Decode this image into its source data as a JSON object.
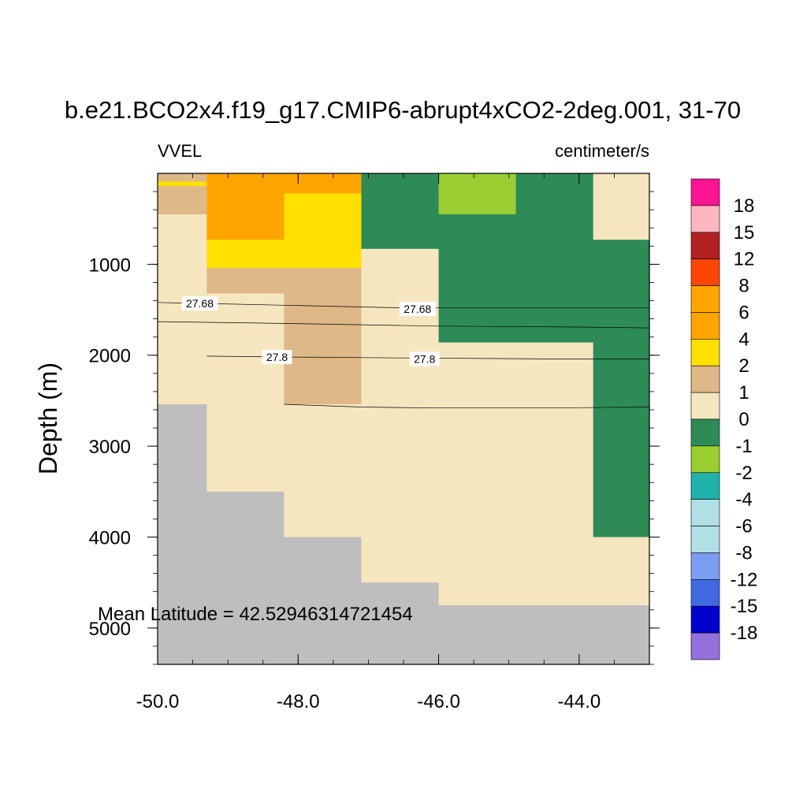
{
  "chart_data": {
    "type": "heatmap",
    "title": "b.e21.BCO2x4.f19_g17.CMIP6-abrupt4xCO2-2deg.001, 31-70",
    "left_label": "VVEL",
    "right_label": "centimeter/s",
    "ylabel": "Depth (m)",
    "xlabel": "",
    "annotation": "Mean Latitude = 42.52946314721454",
    "xlim": [
      -50.0,
      -43.0
    ],
    "ylim": [
      0,
      5400
    ],
    "y_inverted": true,
    "x_ticks": [
      -50.0,
      -48.0,
      -46.0,
      -44.0
    ],
    "x_tick_labels": [
      "-50.0",
      "-48.0",
      "-46.0",
      "-44.0"
    ],
    "y_ticks": [
      1000,
      2000,
      3000,
      4000,
      5000
    ],
    "y_tick_labels": [
      "1000",
      "2000",
      "3000",
      "4000",
      "5000"
    ],
    "colorbar": {
      "colors": [
        "#ff1493",
        "#ffb6c1",
        "#b22222",
        "#ff4500",
        "#ffa500",
        "#ffa500",
        "#ffe000",
        "#deb887",
        "#f5e6bf",
        "#2e8b57",
        "#9acd32",
        "#20b2aa",
        "#b0e0e6",
        "#b0e0e6",
        "#7b9ef2",
        "#4169e1",
        "#0000cd",
        "#9370db"
      ],
      "labels": [
        "18",
        "15",
        "12",
        "8",
        "6",
        "4",
        "2",
        "1",
        "0",
        "-1",
        "-2",
        "-4",
        "-6",
        "-8",
        "-12",
        "-15",
        "-18"
      ]
    },
    "missing_color": "#bebebe",
    "cells": [
      {
        "x0": -50.0,
        "x1": -49.3,
        "y0": 0,
        "y1": 90,
        "color": "#deb887"
      },
      {
        "x0": -50.0,
        "x1": -49.3,
        "y0": 90,
        "y1": 140,
        "color": "#ffe000"
      },
      {
        "x0": -50.0,
        "x1": -49.3,
        "y0": 140,
        "y1": 450,
        "color": "#deb887"
      },
      {
        "x0": -50.0,
        "x1": -49.3,
        "y0": 450,
        "y1": 2540,
        "color": "#f5e6bf"
      },
      {
        "x0": -50.0,
        "x1": -49.3,
        "y0": 2540,
        "y1": 5400,
        "color": "#bebebe"
      },
      {
        "x0": -49.3,
        "x1": -48.2,
        "y0": 0,
        "y1": 730,
        "color": "#ffa500"
      },
      {
        "x0": -49.3,
        "x1": -48.2,
        "y0": 730,
        "y1": 1040,
        "color": "#ffe000"
      },
      {
        "x0": -49.3,
        "x1": -48.2,
        "y0": 1040,
        "y1": 1320,
        "color": "#deb887"
      },
      {
        "x0": -49.3,
        "x1": -48.2,
        "y0": 1320,
        "y1": 3500,
        "color": "#f5e6bf"
      },
      {
        "x0": -49.3,
        "x1": -48.2,
        "y0": 3500,
        "y1": 5400,
        "color": "#bebebe"
      },
      {
        "x0": -48.2,
        "x1": -47.1,
        "y0": 0,
        "y1": 220,
        "color": "#ffa500"
      },
      {
        "x0": -48.2,
        "x1": -47.1,
        "y0": 220,
        "y1": 1040,
        "color": "#ffe000"
      },
      {
        "x0": -48.2,
        "x1": -47.1,
        "y0": 1040,
        "y1": 2540,
        "color": "#deb887"
      },
      {
        "x0": -48.2,
        "x1": -47.1,
        "y0": 2540,
        "y1": 4000,
        "color": "#f5e6bf"
      },
      {
        "x0": -48.2,
        "x1": -47.1,
        "y0": 4000,
        "y1": 5400,
        "color": "#bebebe"
      },
      {
        "x0": -47.1,
        "x1": -46.0,
        "y0": 0,
        "y1": 830,
        "color": "#2e8b57"
      },
      {
        "x0": -47.1,
        "x1": -46.0,
        "y0": 830,
        "y1": 4500,
        "color": "#f5e6bf"
      },
      {
        "x0": -47.1,
        "x1": -46.0,
        "y0": 4500,
        "y1": 5400,
        "color": "#bebebe"
      },
      {
        "x0": -46.0,
        "x1": -44.9,
        "y0": 0,
        "y1": 450,
        "color": "#9acd32"
      },
      {
        "x0": -46.0,
        "x1": -44.9,
        "y0": 450,
        "y1": 1860,
        "color": "#2e8b57"
      },
      {
        "x0": -46.0,
        "x1": -44.9,
        "y0": 1860,
        "y1": 4750,
        "color": "#f5e6bf"
      },
      {
        "x0": -46.0,
        "x1": -44.9,
        "y0": 4750,
        "y1": 5400,
        "color": "#bebebe"
      },
      {
        "x0": -44.9,
        "x1": -43.8,
        "y0": 0,
        "y1": 1860,
        "color": "#2e8b57"
      },
      {
        "x0": -44.9,
        "x1": -43.8,
        "y0": 1860,
        "y1": 4750,
        "color": "#f5e6bf"
      },
      {
        "x0": -44.9,
        "x1": -43.8,
        "y0": 4750,
        "y1": 5400,
        "color": "#bebebe"
      },
      {
        "x0": -43.8,
        "x1": -43.0,
        "y0": 0,
        "y1": 730,
        "color": "#f5e6bf"
      },
      {
        "x0": -43.8,
        "x1": -43.0,
        "y0": 730,
        "y1": 4000,
        "color": "#2e8b57"
      },
      {
        "x0": -43.8,
        "x1": -43.0,
        "y0": 4000,
        "y1": 4750,
        "color": "#f5e6bf"
      },
      {
        "x0": -43.8,
        "x1": -43.0,
        "y0": 4750,
        "y1": 5400,
        "color": "#bebebe"
      }
    ],
    "contours": [
      {
        "points": [
          [
            -50.0,
            1420
          ],
          [
            -48.2,
            1450
          ],
          [
            -46.5,
            1480
          ],
          [
            -44.5,
            1480
          ],
          [
            -43.0,
            1480
          ]
        ],
        "label": "27.68",
        "label_positions": [
          [
            -49.4,
            1430
          ],
          [
            -46.3,
            1490
          ]
        ]
      },
      {
        "points": [
          [
            -50.0,
            1630
          ],
          [
            -48.2,
            1650
          ],
          [
            -46.0,
            1680
          ],
          [
            -44.0,
            1690
          ],
          [
            -43.0,
            1700
          ]
        ],
        "label": null,
        "label_positions": []
      },
      {
        "points": [
          [
            -49.3,
            2010
          ],
          [
            -48.2,
            2020
          ],
          [
            -46.5,
            2030
          ],
          [
            -44.5,
            2040
          ],
          [
            -43.0,
            2040
          ]
        ],
        "label": "27.8",
        "label_positions": [
          [
            -48.3,
            2020
          ],
          [
            -46.2,
            2040
          ]
        ]
      },
      {
        "points": [
          [
            -48.2,
            2540
          ],
          [
            -47.1,
            2570
          ],
          [
            -46.0,
            2580
          ],
          [
            -44.5,
            2580
          ],
          [
            -43.0,
            2570
          ]
        ],
        "label": null,
        "label_positions": []
      }
    ]
  }
}
